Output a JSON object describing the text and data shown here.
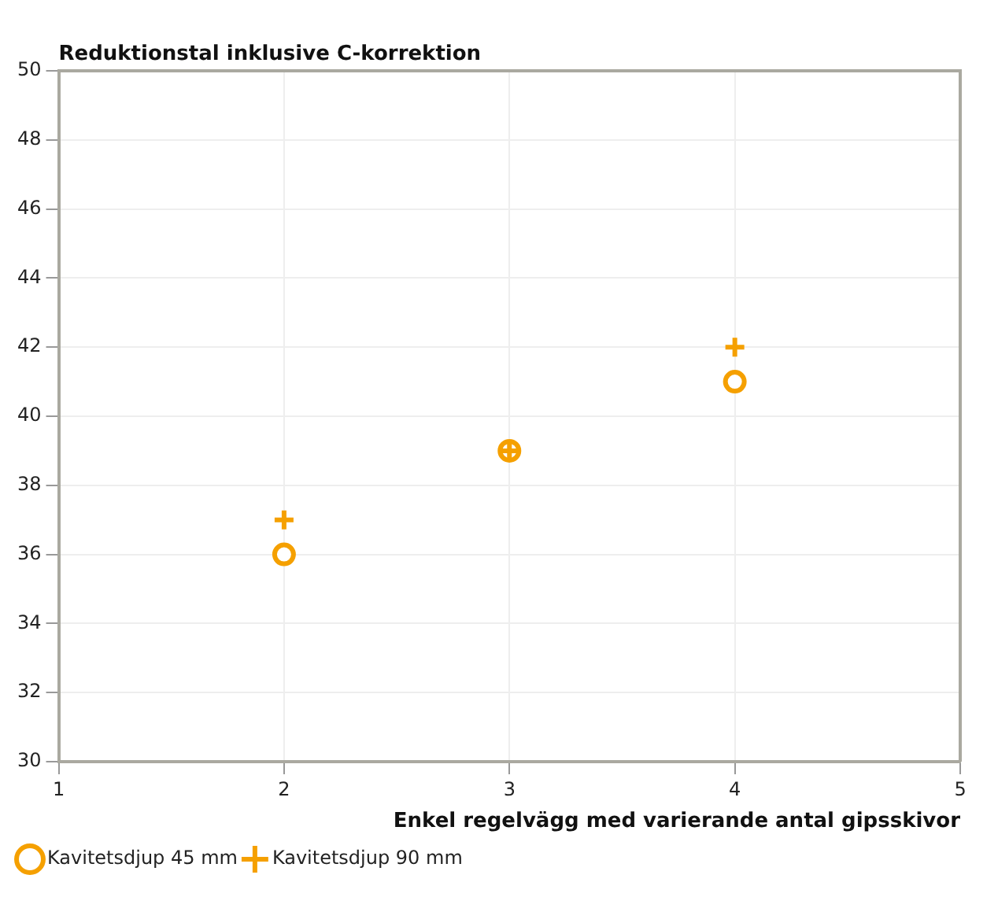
{
  "chart_data": {
    "type": "scatter",
    "ylabel": "Reduktionstal inklusive C-korrektion",
    "xlabel": "Enkel regelvägg med varierande antal gipsskivor",
    "x": [
      2,
      3,
      4
    ],
    "series": [
      {
        "name": "Kavitetsdjup 45 mm",
        "color": "#f5a000",
        "values": [
          36,
          39,
          41
        ],
        "marker": "circle"
      },
      {
        "name": "Kavitetsdjup 90 mm",
        "color": "#f5a000",
        "values": [
          37,
          39,
          42
        ],
        "marker": "cross"
      }
    ],
    "xlim": [
      1,
      5
    ],
    "xticks": [
      1,
      2,
      3,
      4,
      5
    ],
    "ylim": [
      30,
      50
    ],
    "yticks": [
      30,
      32,
      34,
      36,
      38,
      40,
      42,
      44,
      46,
      48,
      50
    ],
    "grid": true,
    "legend": "bottom left"
  }
}
